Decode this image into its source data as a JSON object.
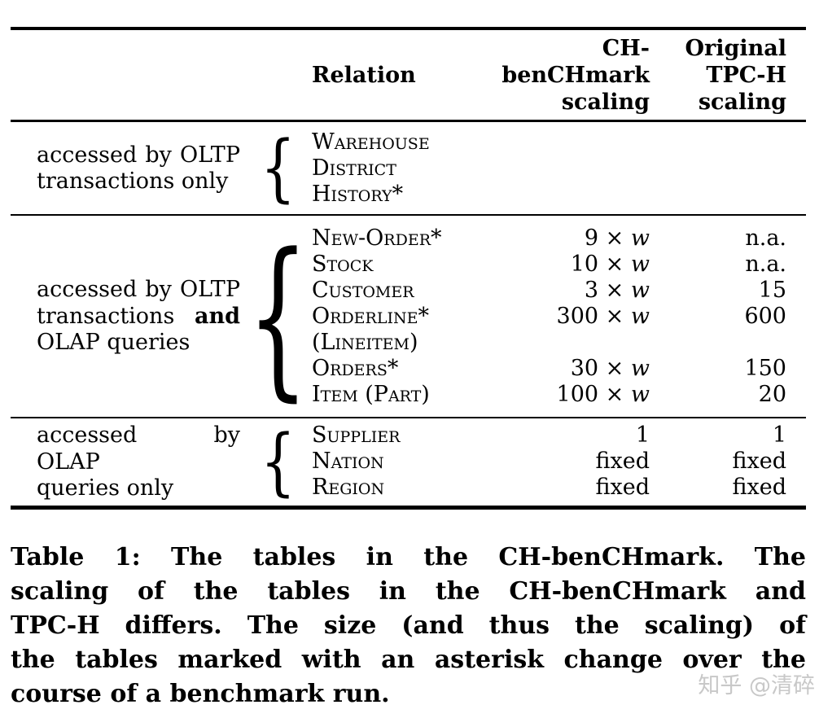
{
  "table": {
    "header": {
      "relation": "Relation",
      "ch_col": [
        "CH-",
        "benCHmark",
        "scaling"
      ],
      "tpch_col": [
        "Original",
        "TPC-H",
        "scaling"
      ]
    },
    "brace": "{",
    "groups": [
      {
        "label_line1": "accessed by OLTP",
        "label_line2": "transactions only",
        "rows": [
          {
            "relation": "Warehouse",
            "ch_prefix": "",
            "ch_w": "",
            "tpch": ""
          },
          {
            "relation": "District",
            "ch_prefix": "",
            "ch_w": "",
            "tpch": ""
          },
          {
            "relation": "History*",
            "ch_prefix": "",
            "ch_w": "",
            "tpch": ""
          }
        ]
      },
      {
        "label_line1": "accessed by OLTP",
        "label_line2_prefix": "transactions",
        "label_line2_bold": "and",
        "label_line3": "OLAP queries",
        "rows": [
          {
            "relation": "New-Order*",
            "ch_prefix": "9 × ",
            "ch_w": "w",
            "tpch": "n.a."
          },
          {
            "relation": "Stock",
            "ch_prefix": "10 × ",
            "ch_w": "w",
            "tpch": "n.a."
          },
          {
            "relation": "Customer",
            "ch_prefix": "3 × ",
            "ch_w": "w",
            "tpch": "15"
          },
          {
            "relation": "Orderline*",
            "ch_prefix": "300 × ",
            "ch_w": "w",
            "tpch": "600"
          },
          {
            "relation": "(Lineitem)",
            "ch_prefix": "",
            "ch_w": "",
            "tpch": ""
          },
          {
            "relation": "Orders*",
            "ch_prefix": "30 × ",
            "ch_w": "w",
            "tpch": "150"
          },
          {
            "relation": "Item (Part)",
            "ch_prefix": "100 × ",
            "ch_w": "w",
            "tpch": "20"
          }
        ]
      },
      {
        "label_line1": "accessed by OLAP",
        "label_line2": "queries only",
        "rows": [
          {
            "relation": "Supplier",
            "ch_prefix": "1",
            "ch_w": "",
            "tpch": "1"
          },
          {
            "relation": "Nation",
            "ch_prefix": "fixed",
            "ch_w": "",
            "tpch": "fixed"
          },
          {
            "relation": "Region",
            "ch_prefix": "fixed",
            "ch_w": "",
            "tpch": "fixed"
          }
        ]
      }
    ]
  },
  "caption": {
    "lines": [
      "Table 1: The tables in the CH-benCHmark. The",
      "scaling of the tables in the CH-benCHmark and",
      "TPC-H differs. The size (and thus the scaling) of",
      "the tables marked with an asterisk change over the",
      "course of a benchmark run."
    ]
  },
  "watermark": "知乎 @清碎"
}
